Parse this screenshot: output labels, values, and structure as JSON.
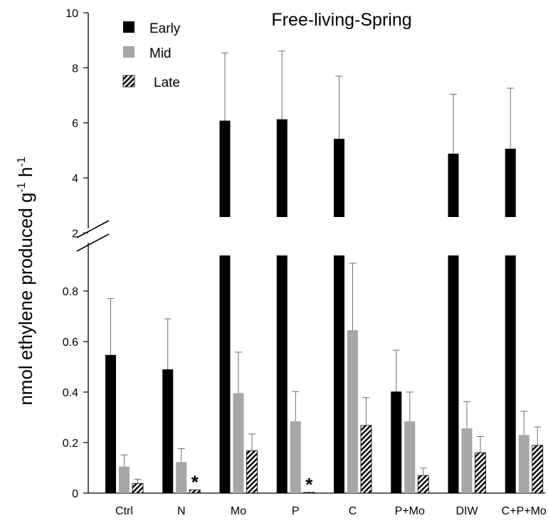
{
  "chart_data": {
    "type": "bar",
    "title": "Free-living-Spring",
    "ylabel_main": "nmol ethylene produced g",
    "ylabel_sup1": "-1",
    "ylabel_mid": " h",
    "ylabel_sup2": "-1",
    "xlabel": "",
    "categories": [
      "Ctrl",
      "N",
      "Mo",
      "P",
      "C",
      "P+Mo",
      "DIW",
      "C+P+Mo"
    ],
    "series": [
      {
        "name": "Early",
        "color": "#000000",
        "pattern": "solid",
        "values": [
          0.547,
          0.49,
          6.08,
          6.13,
          5.42,
          0.402,
          4.88,
          5.06
        ],
        "errors": [
          0.223,
          0.2,
          2.46,
          2.48,
          2.28,
          0.164,
          2.16,
          2.2
        ]
      },
      {
        "name": "Mid",
        "color": "#a6a6a6",
        "pattern": "solid",
        "values": [
          0.105,
          0.123,
          0.396,
          0.284,
          0.645,
          0.284,
          0.256,
          0.23
        ],
        "errors": [
          0.046,
          0.053,
          0.162,
          0.118,
          0.265,
          0.116,
          0.106,
          0.094
        ]
      },
      {
        "name": "Late",
        "color": "#000000",
        "pattern": "hatched",
        "values": [
          0.038,
          0.013,
          0.168,
          0.003,
          0.268,
          0.07,
          0.16,
          0.189
        ],
        "errors": [
          0.017,
          0.0,
          0.066,
          0.0,
          0.11,
          0.029,
          0.064,
          0.073
        ]
      }
    ],
    "significance_markers": [
      {
        "category": "N",
        "series": "Late",
        "text": "*"
      },
      {
        "category": "P",
        "series": "Late",
        "text": "*"
      }
    ],
    "y_axis": {
      "broken": true,
      "lower_range": [
        0,
        1.0
      ],
      "lower_ticks": [
        0,
        0.2,
        0.4,
        0.6,
        0.8
      ],
      "lower_tick_labels": [
        "0",
        "0.2",
        "0.4",
        "0.6",
        "0.8"
      ],
      "upper_range": [
        1.0,
        10
      ],
      "upper_ticks": [
        2,
        4,
        6,
        8,
        10
      ],
      "upper_tick_labels": [
        "2",
        "4",
        "6",
        "8",
        "10"
      ]
    },
    "legend": {
      "position": "top-left",
      "entries": [
        "Early",
        "Mid",
        "Late"
      ]
    },
    "grid": false
  }
}
